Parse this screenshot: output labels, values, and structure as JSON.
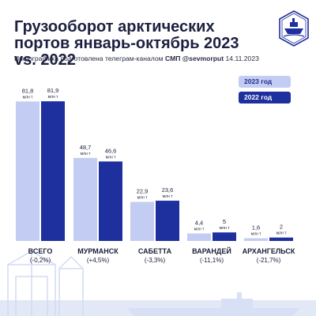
{
  "header": {
    "title": "Грузооборот арктических портов январь-октябрь 2023 vs. 2022",
    "subtitle_prefix": "Инфографика подготовлена телеграм-каналом ",
    "subtitle_channel": "СМП @sevmorput",
    "subtitle_date": " 14.11.2023"
  },
  "legend": {
    "items": [
      {
        "label": "2023 год",
        "color": "#c3cdf3"
      },
      {
        "label": "2022 год",
        "color": "#1e2f9e"
      }
    ]
  },
  "chart_data": {
    "type": "bar",
    "title": "Грузооборот арктических портов январь-октябрь 2023 vs. 2022",
    "categories": [
      "ВСЕГО",
      "МУРМАНСК",
      "САБЕТТА",
      "ВАРАНДЕЙ",
      "АРХАНГЕЛЬСК"
    ],
    "changes": [
      "(-0,2%)",
      "(+4,5%)",
      "(-3,3%)",
      "(-11,1%)",
      "(-21,7%)"
    ],
    "unit": "млн т",
    "series": [
      {
        "name": "2023 год",
        "values": [
          81.8,
          48.7,
          22.9,
          4.4,
          1.6
        ],
        "labels": [
          "81,8",
          "48,7",
          "22,9",
          "4,4",
          "1,6"
        ],
        "color": "#c3cdf3"
      },
      {
        "name": "2022 год",
        "values": [
          81.9,
          46.6,
          23.6,
          5.0,
          2.0
        ],
        "labels": [
          "81,9",
          "46,6",
          "23,6",
          "5",
          "2"
        ],
        "color": "#1e2f9e"
      }
    ],
    "ylim": [
      0,
      82
    ],
    "legend_position": "top-right",
    "grid": false
  }
}
